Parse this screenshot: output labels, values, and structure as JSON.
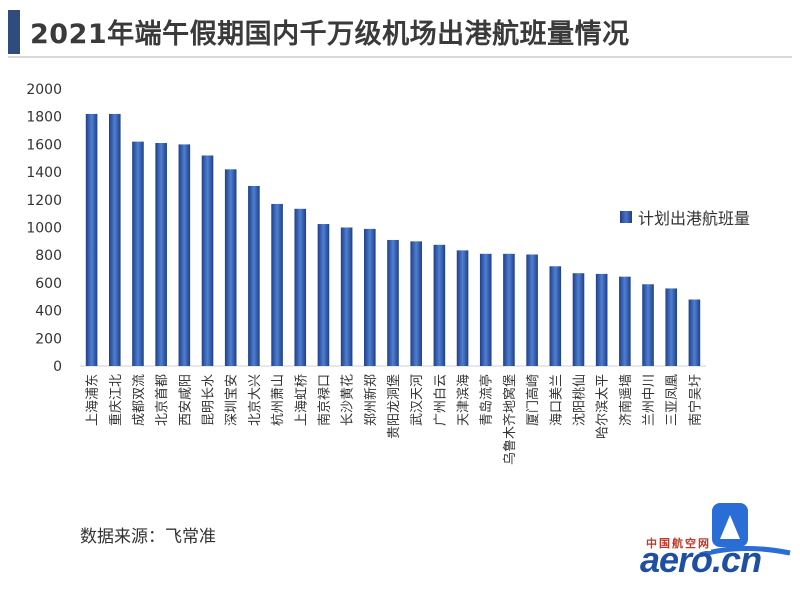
{
  "title": "2021年端午假期国内千万级机场出港航班量情况",
  "source": "数据来源：飞常准",
  "logo": {
    "cn": "中国航空网",
    "en": "aero.cn"
  },
  "colors": {
    "bar": "#2E5BAE",
    "bar_dark": "#1e3f8a",
    "title_bar": "#2F4C7E"
  },
  "chart_data": {
    "type": "bar",
    "categories": [
      "上海浦东",
      "重庆江北",
      "成都双流",
      "北京首都",
      "西安咸阳",
      "昆明长水",
      "深圳宝安",
      "北京大兴",
      "杭州萧山",
      "上海虹桥",
      "南京禄口",
      "长沙黄花",
      "郑州新郑",
      "贵阳龙洞堡",
      "武汉天河",
      "广州白云",
      "天津滨海",
      "青岛流亭",
      "乌鲁木齐地窝堡",
      "厦门高崎",
      "海口美兰",
      "沈阳桃仙",
      "哈尔滨太平",
      "济南遥墙",
      "兰州中川",
      "三亚凤凰",
      "南宁吴圩"
    ],
    "series": [
      {
        "name": "计划出港航班量",
        "values": [
          1820,
          1820,
          1620,
          1610,
          1600,
          1520,
          1420,
          1300,
          1170,
          1135,
          1025,
          1000,
          990,
          910,
          900,
          875,
          835,
          810,
          810,
          805,
          720,
          670,
          665,
          645,
          590,
          560,
          480
        ]
      }
    ],
    "ylim": [
      0,
      2000
    ],
    "yticks": [
      0,
      200,
      400,
      600,
      800,
      1000,
      1200,
      1400,
      1600,
      1800,
      2000
    ],
    "grid": false,
    "legend": "right"
  }
}
